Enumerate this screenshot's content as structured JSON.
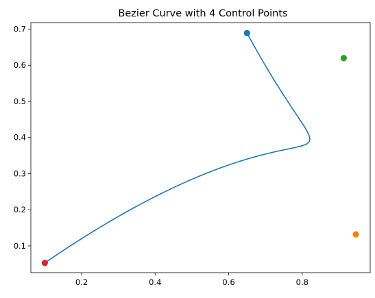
{
  "chart_data": {
    "type": "line",
    "title": "Bezier Curve with 4 Control Points",
    "xlabel": "",
    "ylabel": "",
    "xlim": [
      0.062,
      0.985
    ],
    "ylim": [
      0.026,
      0.718
    ],
    "xticks": [
      0.2,
      0.4,
      0.6,
      0.8
    ],
    "xtick_labels": [
      "0.2",
      "0.4",
      "0.6",
      "0.8"
    ],
    "yticks": [
      0.1,
      0.2,
      0.3,
      0.4,
      0.5,
      0.6,
      0.7
    ],
    "ytick_labels": [
      "0.1",
      "0.2",
      "0.3",
      "0.4",
      "0.5",
      "0.6",
      "0.7"
    ],
    "grid": false,
    "curve": {
      "color": "#1f77b4",
      "kind": "cubic-bezier"
    },
    "control_points": [
      {
        "x": 0.65,
        "y": 0.689,
        "color": "#1f77b4"
      },
      {
        "x": 0.946,
        "y": 0.132,
        "color": "#ff7f0e"
      },
      {
        "x": 0.913,
        "y": 0.62,
        "color": "#2ca02c"
      },
      {
        "x": 0.1,
        "y": 0.053,
        "color": "#d62728"
      }
    ]
  }
}
